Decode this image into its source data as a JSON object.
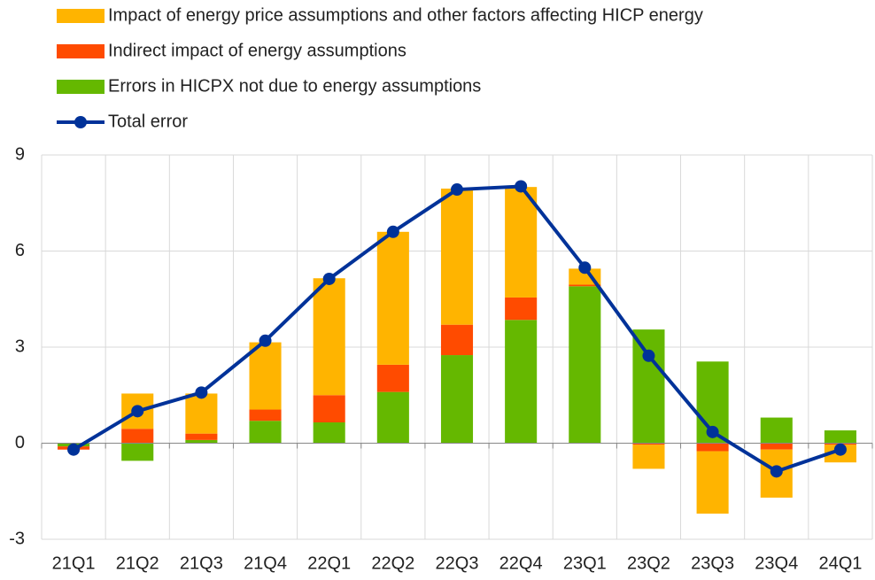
{
  "chart_data": {
    "type": "bar",
    "stacked": true,
    "categories": [
      "21Q1",
      "21Q2",
      "21Q3",
      "21Q4",
      "22Q1",
      "22Q2",
      "22Q3",
      "22Q4",
      "23Q1",
      "23Q2",
      "23Q3",
      "23Q4",
      "24Q1"
    ],
    "series": [
      {
        "name": "Errors in HICPX not due to energy assumptions",
        "color": "#65b800",
        "values": [
          -0.1,
          -0.55,
          0.1,
          0.7,
          0.65,
          1.6,
          2.75,
          3.85,
          4.9,
          3.55,
          2.55,
          0.8,
          0.4
        ]
      },
      {
        "name": "Indirect impact of energy assumptions",
        "color": "#ff4b00",
        "values": [
          -0.1,
          0.45,
          0.2,
          0.35,
          0.85,
          0.85,
          0.95,
          0.7,
          0.05,
          -0.05,
          -0.25,
          -0.2,
          -0.05
        ]
      },
      {
        "name": "Impact of energy price assumptions and other factors affecting HICP energy",
        "color": "#ffb400",
        "values": [
          0,
          1.1,
          1.25,
          2.1,
          3.65,
          4.15,
          4.25,
          3.45,
          0.5,
          -0.75,
          -1.95,
          -1.5,
          -0.55
        ]
      },
      {
        "name": "Total error",
        "color": "#003299",
        "type": "line",
        "values": [
          -0.2,
          1.0,
          1.58,
          3.2,
          5.13,
          6.6,
          7.92,
          8.02,
          5.48,
          2.73,
          0.35,
          -0.88,
          -0.2
        ]
      }
    ],
    "ylim": [
      -3,
      9
    ],
    "yticks": [
      -3,
      0,
      3,
      6,
      9
    ],
    "grid": true
  }
}
